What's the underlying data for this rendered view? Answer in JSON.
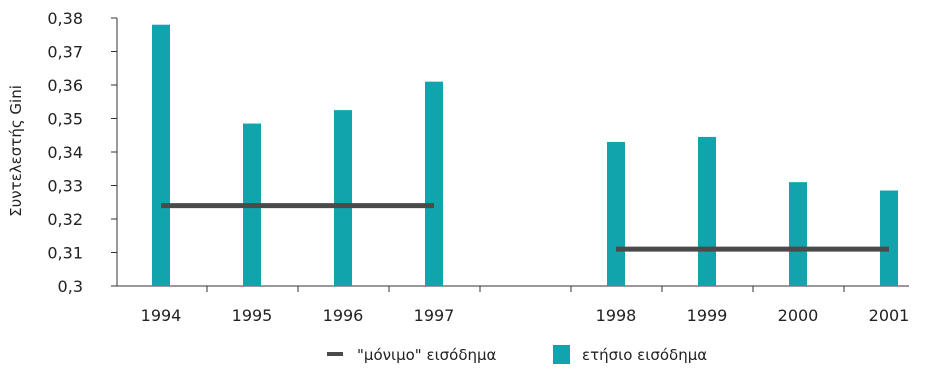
{
  "chart_data": {
    "type": "bar",
    "ylabel": "Συντελεστής Gini",
    "ylim": [
      0.3,
      0.38
    ],
    "y_ticks": [
      "0,3",
      "0,31",
      "0,32",
      "0,33",
      "0,34",
      "0,35",
      "0,36",
      "0,37",
      "0,38"
    ],
    "categories": [
      "1994",
      "1995",
      "1996",
      "1997",
      "1998",
      "1999",
      "2000",
      "2001"
    ],
    "series": [
      {
        "name": "ετήσιο εισόδημα",
        "kind": "bar",
        "color": "#11a4ac",
        "values": [
          0.378,
          0.3485,
          0.3525,
          0.361,
          0.343,
          0.3445,
          0.331,
          0.3285
        ]
      },
      {
        "name": "\"μόνιμο\" εισόδημα",
        "kind": "line",
        "color": "#4a4a4a",
        "segments": [
          {
            "from": "1994",
            "to": "1997",
            "value": 0.324
          },
          {
            "from": "1998",
            "to": "2001",
            "value": 0.311
          }
        ]
      }
    ],
    "legend_position": "bottom",
    "grid": false
  }
}
